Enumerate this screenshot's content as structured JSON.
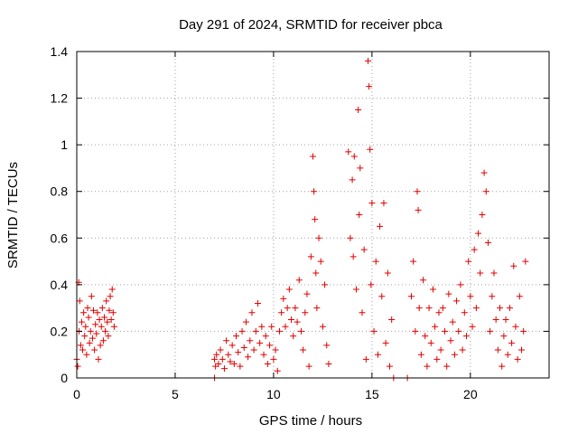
{
  "chart_data": {
    "type": "scatter",
    "title": "Day 291 of 2024, SRMTID for receiver pbca",
    "xlabel": "GPS time / hours",
    "ylabel": "SRMTID / TECUs",
    "xlim": [
      0,
      24
    ],
    "ylim": [
      0,
      1.4
    ],
    "xticks": [
      0,
      5,
      10,
      15,
      20
    ],
    "yticks": [
      0,
      0.2,
      0.4,
      0.6,
      0.8,
      1,
      1.2,
      1.4
    ],
    "yticklabels": [
      "0",
      "0.2",
      "0.4",
      "0.6",
      "0.8",
      "1",
      "1.2",
      "1.4"
    ],
    "grid": true,
    "marker": "+",
    "color": "#e00000",
    "series": [
      {
        "name": "SRMTID",
        "points": [
          [
            0.0,
            0.08
          ],
          [
            0.05,
            0.05
          ],
          [
            0.1,
            0.41
          ],
          [
            0.12,
            0.2
          ],
          [
            0.15,
            0.33
          ],
          [
            0.2,
            0.14
          ],
          [
            0.25,
            0.24
          ],
          [
            0.3,
            0.12
          ],
          [
            0.35,
            0.28
          ],
          [
            0.4,
            0.18
          ],
          [
            0.45,
            0.22
          ],
          [
            0.5,
            0.1
          ],
          [
            0.55,
            0.3
          ],
          [
            0.6,
            0.26
          ],
          [
            0.65,
            0.15
          ],
          [
            0.7,
            0.2
          ],
          [
            0.75,
            0.35
          ],
          [
            0.8,
            0.17
          ],
          [
            0.85,
            0.29
          ],
          [
            0.9,
            0.12
          ],
          [
            0.95,
            0.23
          ],
          [
            1.0,
            0.19
          ],
          [
            1.05,
            0.28
          ],
          [
            1.1,
            0.08
          ],
          [
            1.15,
            0.25
          ],
          [
            1.2,
            0.14
          ],
          [
            1.25,
            0.22
          ],
          [
            1.3,
            0.3
          ],
          [
            1.35,
            0.16
          ],
          [
            1.4,
            0.26
          ],
          [
            1.45,
            0.2
          ],
          [
            1.5,
            0.33
          ],
          [
            1.55,
            0.24
          ],
          [
            1.6,
            0.18
          ],
          [
            1.65,
            0.29
          ],
          [
            1.7,
            0.35
          ],
          [
            1.75,
            0.25
          ],
          [
            1.8,
            0.38
          ],
          [
            1.85,
            0.28
          ],
          [
            1.9,
            0.22
          ],
          [
            7.0,
            0.0
          ],
          [
            7.0,
            0.08
          ],
          [
            7.05,
            0.05
          ],
          [
            7.1,
            0.1
          ],
          [
            7.2,
            0.06
          ],
          [
            7.3,
            0.12
          ],
          [
            7.4,
            0.08
          ],
          [
            7.5,
            0.04
          ],
          [
            7.6,
            0.16
          ],
          [
            7.7,
            0.1
          ],
          [
            7.8,
            0.07
          ],
          [
            7.9,
            0.14
          ],
          [
            8.0,
            0.06
          ],
          [
            8.1,
            0.18
          ],
          [
            8.2,
            0.11
          ],
          [
            8.3,
            0.05
          ],
          [
            8.4,
            0.2
          ],
          [
            8.5,
            0.13
          ],
          [
            8.6,
            0.24
          ],
          [
            8.7,
            0.09
          ],
          [
            8.8,
            0.16
          ],
          [
            8.9,
            0.28
          ],
          [
            9.0,
            0.12
          ],
          [
            9.1,
            0.2
          ],
          [
            9.2,
            0.32
          ],
          [
            9.3,
            0.15
          ],
          [
            9.4,
            0.22
          ],
          [
            9.5,
            0.1
          ],
          [
            9.6,
            0.18
          ],
          [
            9.7,
            0.06
          ],
          [
            9.8,
            0.14
          ],
          [
            9.9,
            0.22
          ],
          [
            10.0,
            0.08
          ],
          [
            10.1,
            0.12
          ],
          [
            10.2,
            0.03
          ],
          [
            10.3,
            0.2
          ],
          [
            10.4,
            0.28
          ],
          [
            10.5,
            0.34
          ],
          [
            10.6,
            0.22
          ],
          [
            10.7,
            0.3
          ],
          [
            10.8,
            0.38
          ],
          [
            10.9,
            0.25
          ],
          [
            11.0,
            0.18
          ],
          [
            11.1,
            0.3
          ],
          [
            11.2,
            0.24
          ],
          [
            11.3,
            0.42
          ],
          [
            11.4,
            0.2
          ],
          [
            11.5,
            0.12
          ],
          [
            11.6,
            0.28
          ],
          [
            11.7,
            0.36
          ],
          [
            11.8,
            0.05
          ],
          [
            11.9,
            0.52
          ],
          [
            12.0,
            0.95
          ],
          [
            12.05,
            0.8
          ],
          [
            12.1,
            0.68
          ],
          [
            12.15,
            0.45
          ],
          [
            12.2,
            0.3
          ],
          [
            12.3,
            0.6
          ],
          [
            12.4,
            0.5
          ],
          [
            12.5,
            0.22
          ],
          [
            12.6,
            0.4
          ],
          [
            12.7,
            0.14
          ],
          [
            12.8,
            0.06
          ],
          [
            13.8,
            0.97
          ],
          [
            13.9,
            0.6
          ],
          [
            14.0,
            0.85
          ],
          [
            14.05,
            0.52
          ],
          [
            14.1,
            0.95
          ],
          [
            14.2,
            0.38
          ],
          [
            14.3,
            1.15
          ],
          [
            14.35,
            0.7
          ],
          [
            14.4,
            0.9
          ],
          [
            14.5,
            0.28
          ],
          [
            14.6,
            0.55
          ],
          [
            14.7,
            0.08
          ],
          [
            14.8,
            1.36
          ],
          [
            14.85,
            1.25
          ],
          [
            14.9,
            0.98
          ],
          [
            14.95,
            0.4
          ],
          [
            15.0,
            0.75
          ],
          [
            15.1,
            0.2
          ],
          [
            15.2,
            0.5
          ],
          [
            15.3,
            0.1
          ],
          [
            15.4,
            0.65
          ],
          [
            15.5,
            0.35
          ],
          [
            15.6,
            0.75
          ],
          [
            15.7,
            0.15
          ],
          [
            15.8,
            0.45
          ],
          [
            15.9,
            0.05
          ],
          [
            16.0,
            0.25
          ],
          [
            16.1,
            0.0
          ],
          [
            16.8,
            0.0
          ],
          [
            17.0,
            0.35
          ],
          [
            17.1,
            0.5
          ],
          [
            17.2,
            0.2
          ],
          [
            17.3,
            0.8
          ],
          [
            17.35,
            0.72
          ],
          [
            17.4,
            0.3
          ],
          [
            17.5,
            0.1
          ],
          [
            17.6,
            0.42
          ],
          [
            17.7,
            0.18
          ],
          [
            17.8,
            0.05
          ],
          [
            17.9,
            0.3
          ],
          [
            18.0,
            0.15
          ],
          [
            18.1,
            0.38
          ],
          [
            18.2,
            0.22
          ],
          [
            18.3,
            0.08
          ],
          [
            18.4,
            0.28
          ],
          [
            18.5,
            0.12
          ],
          [
            18.6,
            0.3
          ],
          [
            18.7,
            0.2
          ],
          [
            18.8,
            0.05
          ],
          [
            18.9,
            0.36
          ],
          [
            19.0,
            0.16
          ],
          [
            19.1,
            0.24
          ],
          [
            19.2,
            0.1
          ],
          [
            19.3,
            0.33
          ],
          [
            19.4,
            0.2
          ],
          [
            19.5,
            0.4
          ],
          [
            19.6,
            0.12
          ],
          [
            19.7,
            0.28
          ],
          [
            19.8,
            0.18
          ],
          [
            19.9,
            0.5
          ],
          [
            20.0,
            0.35
          ],
          [
            20.1,
            0.22
          ],
          [
            20.2,
            0.55
          ],
          [
            20.3,
            0.3
          ],
          [
            20.4,
            0.62
          ],
          [
            20.5,
            0.45
          ],
          [
            20.6,
            0.7
          ],
          [
            20.7,
            0.88
          ],
          [
            20.8,
            0.8
          ],
          [
            20.9,
            0.58
          ],
          [
            21.0,
            0.2
          ],
          [
            21.1,
            0.35
          ],
          [
            21.2,
            0.45
          ],
          [
            21.3,
            0.25
          ],
          [
            21.4,
            0.12
          ],
          [
            21.5,
            0.3
          ],
          [
            21.6,
            0.05
          ],
          [
            21.7,
            0.18
          ],
          [
            21.8,
            0.25
          ],
          [
            21.9,
            0.1
          ],
          [
            22.0,
            0.3
          ],
          [
            22.1,
            0.15
          ],
          [
            22.2,
            0.48
          ],
          [
            22.3,
            0.22
          ],
          [
            22.4,
            0.08
          ],
          [
            22.5,
            0.35
          ],
          [
            22.6,
            0.12
          ],
          [
            22.7,
            0.2
          ],
          [
            22.8,
            0.5
          ]
        ]
      }
    ]
  }
}
